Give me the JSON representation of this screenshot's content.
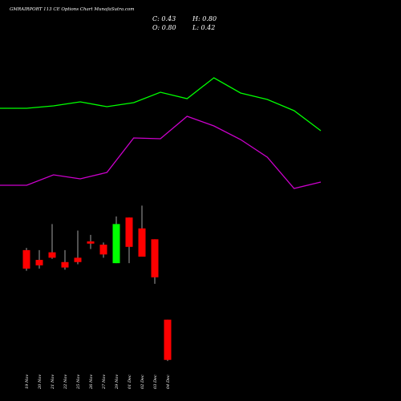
{
  "chart_data": {
    "type": "candlestick",
    "title": "GMRAIRPORT 113 CE Options  Chart MunafaSutra.com",
    "ohlc_labels": {
      "close": "C: 0.43",
      "high": "H: 0.80",
      "open": "O: 0.80",
      "low": "L: 0.42"
    },
    "categories": [
      "19 Nov",
      "20 Nov",
      "21 Nov",
      "22 Nov",
      "25 Nov",
      "26 Nov",
      "27 Nov",
      "29 Nov",
      "01 Dec",
      "02 Dec",
      "03 Dec",
      "04 Dec"
    ],
    "candles": [
      {
        "open": 1.44,
        "high": 1.46,
        "low": 1.25,
        "close": 1.27,
        "color": "#ff0000"
      },
      {
        "open": 1.35,
        "high": 1.44,
        "low": 1.27,
        "close": 1.3,
        "color": "#ff0000"
      },
      {
        "open": 1.42,
        "high": 1.68,
        "low": 1.36,
        "close": 1.37,
        "color": "#ff0000"
      },
      {
        "open": 1.33,
        "high": 1.44,
        "low": 1.26,
        "close": 1.28,
        "color": "#ff0000"
      },
      {
        "open": 1.37,
        "high": 1.62,
        "low": 1.31,
        "close": 1.33,
        "color": "#ff0000"
      },
      {
        "open": 1.52,
        "high": 1.58,
        "low": 1.45,
        "close": 1.5,
        "color": "#ff0000"
      },
      {
        "open": 1.49,
        "high": 1.51,
        "low": 1.37,
        "close": 1.4,
        "color": "#ff0000"
      },
      {
        "open": 1.32,
        "high": 1.75,
        "low": 1.32,
        "close": 1.68,
        "color": "#00ff00"
      },
      {
        "open": 1.74,
        "high": 1.74,
        "low": 1.32,
        "close": 1.47,
        "color": "#ff0000"
      },
      {
        "open": 1.64,
        "high": 1.85,
        "low": 1.38,
        "close": 1.38,
        "color": "#ff0000"
      },
      {
        "open": 1.54,
        "high": 1.54,
        "low": 1.13,
        "close": 1.19,
        "color": "#ff0000"
      },
      {
        "open": 0.8,
        "high": 0.8,
        "low": 0.42,
        "close": 0.43,
        "color": "#ff0000"
      }
    ],
    "lines": [
      {
        "color": "#00ff00",
        "x": [
          0,
          1,
          2,
          3,
          4,
          5,
          6,
          7,
          8,
          9,
          10,
          11,
          12
        ],
        "values": [
          135,
          135,
          132,
          127,
          133,
          128,
          115,
          123,
          97,
          116,
          124,
          138,
          163
        ]
      },
      {
        "color": "#cc00cc",
        "x": [
          0,
          1,
          2,
          3,
          4,
          5,
          6,
          7,
          8,
          9,
          10,
          11,
          12
        ],
        "values": [
          231,
          231,
          218,
          223,
          215,
          172,
          173,
          145,
          157,
          174,
          196,
          235,
          227
        ]
      }
    ],
    "background": "#000000",
    "grid": false
  }
}
